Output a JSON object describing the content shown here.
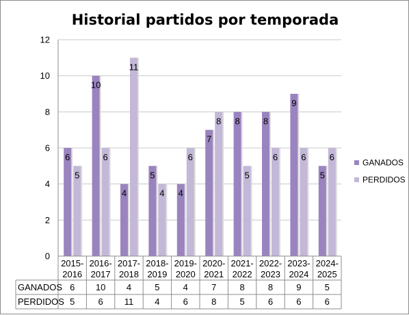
{
  "chart_data": {
    "type": "bar",
    "title": "Historial partidos por temporada",
    "categories": [
      [
        "2015-",
        "2016"
      ],
      [
        "2016-",
        "2017"
      ],
      [
        "2017-",
        "2018"
      ],
      [
        "2018-",
        "2019"
      ],
      [
        "2019-",
        "2020"
      ],
      [
        "2020-",
        "2021"
      ],
      [
        "2021-",
        "2022"
      ],
      [
        "2022-",
        "2023"
      ],
      [
        "2023-",
        "2024"
      ],
      [
        "2024-",
        "2025"
      ]
    ],
    "series": [
      {
        "name": "GANADOS",
        "values": [
          6,
          10,
          4,
          5,
          4,
          7,
          8,
          8,
          9,
          5
        ],
        "color": "#9a84bf"
      },
      {
        "name": "PERDIDOS",
        "values": [
          5,
          6,
          11,
          4,
          6,
          8,
          5,
          6,
          6,
          6
        ],
        "color": "#c3b8d8"
      }
    ],
    "ylim": [
      0,
      12
    ],
    "yticks": [
      0,
      2,
      4,
      6,
      8,
      10,
      12
    ],
    "grid": true,
    "legend": "right",
    "data_table": true
  }
}
